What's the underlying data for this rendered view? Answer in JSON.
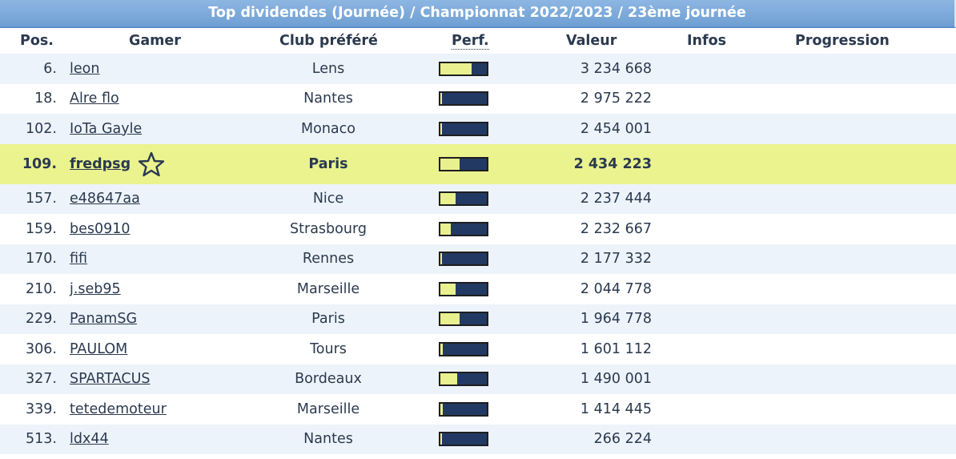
{
  "title": "Top dividendes (Journée) / Championnat 2022/2023 / 23ème journée",
  "columns": {
    "pos": "Pos.",
    "gamer": "Gamer",
    "club": "Club préféré",
    "perf": "Perf.",
    "value": "Valeur",
    "infos": "Infos",
    "progression": "Progression"
  },
  "colors": {
    "highlight": "#eaf38e",
    "perf_fill": "#e9f090",
    "perf_track": "#223a63",
    "header_blue": "#7aa7d9"
  },
  "rows": [
    {
      "pos": "6.",
      "gamer": "leon",
      "club": "Lens",
      "value": "3 234 668",
      "perf": 0.68
    },
    {
      "pos": "18.",
      "gamer": "Alre flo",
      "club": "Nantes",
      "value": "2 975 222",
      "perf": 0.04
    },
    {
      "pos": "102.",
      "gamer": "IoTa Gayle",
      "club": "Monaco",
      "value": "2 454 001",
      "perf": 0.04
    },
    {
      "pos": "109.",
      "gamer": "fredpsg",
      "club": "Paris",
      "value": "2 434 223",
      "perf": 0.42,
      "highlight": true,
      "star_icon": "star-outline-icon"
    },
    {
      "pos": "157.",
      "gamer": "e48647aa",
      "club": "Nice",
      "value": "2 237 444",
      "perf": 0.32
    },
    {
      "pos": "159.",
      "gamer": "bes0910",
      "club": "Strasbourg",
      "value": "2 232 667",
      "perf": 0.22
    },
    {
      "pos": "170.",
      "gamer": "fifi",
      "club": "Rennes",
      "value": "2 177 332",
      "perf": 0.04
    },
    {
      "pos": "210.",
      "gamer": "j.seb95",
      "club": "Marseille",
      "value": "2 044 778",
      "perf": 0.32
    },
    {
      "pos": "229.",
      "gamer": "PanamSG",
      "club": "Paris",
      "value": "1 964 778",
      "perf": 0.42
    },
    {
      "pos": "306.",
      "gamer": "PAULOM",
      "club": "Tours",
      "value": "1 601 112",
      "perf": 0.06
    },
    {
      "pos": "327.",
      "gamer": "SPARTACUS",
      "club": "Bordeaux",
      "value": "1 490 001",
      "perf": 0.36
    },
    {
      "pos": "339.",
      "gamer": "tetedemoteur",
      "club": "Marseille",
      "value": "1 414 445",
      "perf": 0.06
    },
    {
      "pos": "513.",
      "gamer": "ldx44",
      "club": "Nantes",
      "value": "266 224",
      "perf": 0.04
    }
  ]
}
